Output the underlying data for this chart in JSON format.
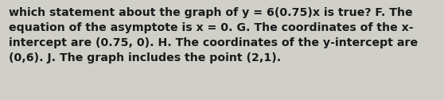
{
  "text": "which statement about the graph of y = 6(0.75)x is true? F. The\nequation of the asymptote is x = 0. G. The coordinates of the x-\nintercept are (0.75, 0). H. The coordinates of the y-intercept are\n(0,6). J. The graph includes the point (2,1).",
  "background_color": "#d0cfc8",
  "text_color": "#1a1a1a",
  "font_size": 10.2,
  "font_weight": "bold",
  "font_family": "DejaVu Sans"
}
